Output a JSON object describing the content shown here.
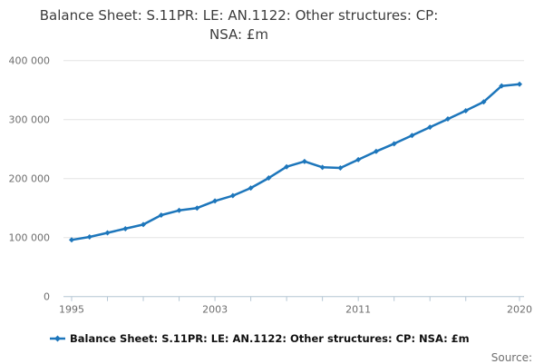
{
  "title_lines": [
    "Balance Sheet: S.11PR: LE: AN.1122: Other structures: CP:",
    "NSA: £m"
  ],
  "legend": {
    "label": "Balance Sheet: S.11PR: LE: AN.1122: Other structures: CP: NSA: £m"
  },
  "source_label": "Source:",
  "colors": {
    "line": "#1d76bb",
    "grid": "#e4e4e4",
    "axis": "#b4c6d4",
    "axis_text": "#6e6e6e",
    "title_text": "#3c3c3c",
    "legend_text": "#111111"
  },
  "chart_data": {
    "type": "line",
    "title": "Balance Sheet: S.11PR: LE: AN.1122: Other structures: CP: NSA: £m",
    "xlabel": "",
    "ylabel": "",
    "x": [
      1995,
      1996,
      1997,
      1998,
      1999,
      2000,
      2001,
      2002,
      2003,
      2004,
      2005,
      2006,
      2007,
      2008,
      2009,
      2010,
      2011,
      2012,
      2013,
      2014,
      2015,
      2016,
      2017,
      2018,
      2019,
      2020
    ],
    "series": [
      {
        "name": "Balance Sheet: S.11PR: LE: AN.1122: Other structures: CP: NSA: £m",
        "values": [
          96000,
          101000,
          108000,
          115000,
          122000,
          138000,
          146000,
          150000,
          162000,
          171000,
          184000,
          201000,
          220000,
          229000,
          219000,
          218000,
          232000,
          246000,
          259000,
          273000,
          287000,
          301000,
          315000,
          330000,
          357000,
          360000
        ]
      }
    ],
    "ylim": [
      0,
      400000
    ],
    "yticks": [
      0,
      100000,
      200000,
      300000,
      400000
    ],
    "ytick_labels": [
      "0",
      "100 000",
      "200 000",
      "300 000",
      "400 000"
    ],
    "xtick_marks": [
      1995,
      1997,
      1999,
      2001,
      2003,
      2005,
      2007,
      2009,
      2011,
      2013,
      2015,
      2017,
      2020
    ],
    "xtick_labels": [
      1995,
      2003,
      2011,
      2020
    ],
    "grid": "horizontal",
    "legend_position": "bottom",
    "marker": "diamond"
  }
}
